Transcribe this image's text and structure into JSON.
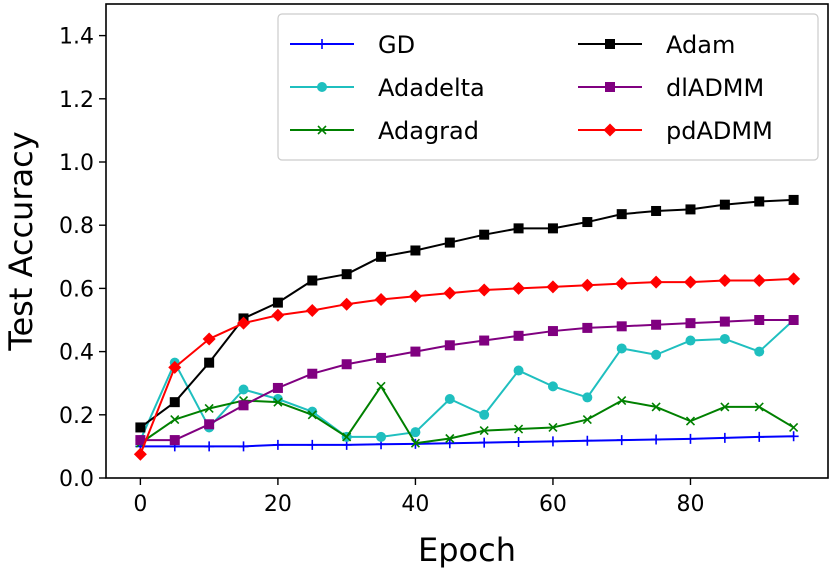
{
  "chart_data": {
    "type": "line",
    "title": "",
    "xlabel": "Epoch",
    "ylabel": "Test Accuracy",
    "xlim": [
      -5,
      100
    ],
    "ylim": [
      0.0,
      1.5
    ],
    "xticks": [
      0,
      20,
      40,
      60,
      80
    ],
    "yticks": [
      0.0,
      0.2,
      0.4,
      0.6,
      0.8,
      1.0,
      1.2,
      1.4
    ],
    "xtick_labels": [
      "0",
      "20",
      "40",
      "60",
      "80"
    ],
    "ytick_labels": [
      "0.0",
      "0.2",
      "0.4",
      "0.6",
      "0.8",
      "1.0",
      "1.2",
      "1.4"
    ],
    "legend_position": "top-right",
    "grid": false,
    "x": [
      0,
      5,
      10,
      15,
      20,
      25,
      30,
      35,
      40,
      45,
      50,
      55,
      60,
      65,
      70,
      75,
      80,
      85,
      90,
      95
    ],
    "series": [
      {
        "name": "GD",
        "color": "#0000ff",
        "marker": "plus",
        "values": [
          0.1,
          0.1,
          0.1,
          0.1,
          0.105,
          0.105,
          0.105,
          0.107,
          0.108,
          0.11,
          0.112,
          0.114,
          0.116,
          0.118,
          0.12,
          0.122,
          0.124,
          0.127,
          0.13,
          0.132
        ]
      },
      {
        "name": "Adadelta",
        "color": "#1fbfbf",
        "marker": "circle",
        "values": [
          0.12,
          0.365,
          0.16,
          0.28,
          0.25,
          0.21,
          0.13,
          0.13,
          0.145,
          0.25,
          0.2,
          0.34,
          0.29,
          0.255,
          0.41,
          0.39,
          0.435,
          0.44,
          0.4,
          0.5
        ]
      },
      {
        "name": "Adagrad",
        "color": "#008000",
        "marker": "x",
        "values": [
          0.11,
          0.185,
          0.22,
          0.245,
          0.24,
          0.2,
          0.13,
          0.29,
          0.11,
          0.125,
          0.15,
          0.155,
          0.16,
          0.185,
          0.245,
          0.225,
          0.18,
          0.225,
          0.225,
          0.16
        ]
      },
      {
        "name": "Adam",
        "color": "#000000",
        "marker": "square",
        "values": [
          0.16,
          0.24,
          0.365,
          0.505,
          0.555,
          0.625,
          0.645,
          0.7,
          0.72,
          0.745,
          0.77,
          0.79,
          0.79,
          0.81,
          0.835,
          0.845,
          0.85,
          0.865,
          0.875,
          0.88
        ]
      },
      {
        "name": "dlADMM",
        "color": "#800080",
        "marker": "square",
        "values": [
          0.12,
          0.12,
          0.17,
          0.23,
          0.285,
          0.33,
          0.36,
          0.38,
          0.4,
          0.42,
          0.435,
          0.45,
          0.465,
          0.475,
          0.48,
          0.485,
          0.49,
          0.495,
          0.5,
          0.5
        ]
      },
      {
        "name": "pdADMM",
        "color": "#ff0000",
        "marker": "diamond",
        "values": [
          0.075,
          0.35,
          0.44,
          0.49,
          0.515,
          0.53,
          0.55,
          0.565,
          0.575,
          0.585,
          0.595,
          0.6,
          0.605,
          0.61,
          0.615,
          0.62,
          0.62,
          0.625,
          0.625,
          0.63
        ]
      }
    ]
  }
}
